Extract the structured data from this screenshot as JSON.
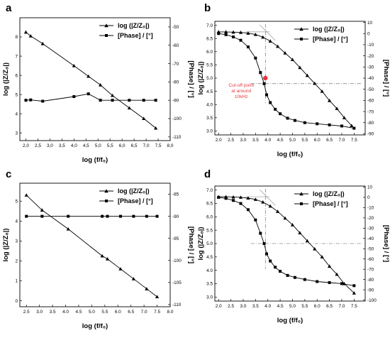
{
  "chart_data": [
    {
      "panel": "a",
      "type": "line",
      "xlabel": "log (f/f₀)",
      "ylabel": "log (|Z/Z₀|)",
      "y2label": "[Phase] / [°]",
      "xlim": [
        1.75,
        8.0
      ],
      "ylim": [
        2.6,
        9.0
      ],
      "y2lim": [
        -112,
        -45
      ],
      "grid": false,
      "legend_position": "top-right",
      "xticks": [
        "2,0",
        "2,5",
        "3,0",
        "3,5",
        "4,0",
        "4,5",
        "5,0",
        "5,5",
        "6,0",
        "6,5",
        "7,0",
        "7,5",
        "8,0"
      ],
      "xtick_values": [
        2.0,
        2.5,
        3.0,
        3.5,
        4.0,
        4.5,
        5.0,
        5.5,
        6.0,
        6.5,
        7.0,
        7.5,
        8.0
      ],
      "yticks": [
        "3",
        "4",
        "5",
        "6",
        "7",
        "8"
      ],
      "ytick_values": [
        3,
        4,
        5,
        6,
        7,
        8
      ],
      "y2ticks": [
        "-50",
        "-60",
        "-70",
        "-80",
        "-90",
        "-100",
        "-110"
      ],
      "y2tick_values": [
        -50,
        -60,
        -70,
        -80,
        -90,
        -100,
        -110
      ],
      "series": [
        {
          "name": "log (|Z/Z₀|)",
          "marker": "triangle",
          "axis": "left",
          "x": [
            2.0,
            2.2,
            2.7,
            4.0,
            4.6,
            5.1,
            5.6,
            6.3,
            6.9,
            7.4
          ],
          "y": [
            8.25,
            8.05,
            7.65,
            6.5,
            5.95,
            5.5,
            4.95,
            4.3,
            3.75,
            3.25
          ]
        },
        {
          "name": "[Phase] / [°]",
          "marker": "square",
          "axis": "right",
          "x": [
            2.0,
            2.2,
            2.7,
            4.0,
            4.6,
            5.1,
            5.6,
            6.3,
            6.9,
            7.4
          ],
          "y": [
            -90,
            -89.8,
            -90.5,
            -88,
            -86.5,
            -90,
            -90,
            -90,
            -90,
            -90
          ]
        }
      ]
    },
    {
      "panel": "b",
      "type": "line",
      "xlabel": "log (f/f₀)",
      "ylabel": "log (|Z/Z₀|)",
      "y2label": "[Phase] / [°]",
      "xlim": [
        1.85,
        7.95
      ],
      "ylim": [
        2.85,
        7.15
      ],
      "y2lim": [
        -91,
        11
      ],
      "grid": false,
      "legend_position": "top-right",
      "xticks": [
        "2.0",
        "2.5",
        "3.0",
        "3.5",
        "4.0",
        "4.5",
        "5.0",
        "5.5",
        "6.0",
        "6.5",
        "7.0",
        "7.5"
      ],
      "xtick_values": [
        2.0,
        2.5,
        3.0,
        3.5,
        4.0,
        4.5,
        5.0,
        5.5,
        6.0,
        6.5,
        7.0,
        7.5
      ],
      "yticks": [
        "3.0",
        "3.5",
        "4.0",
        "4.5",
        "5.0",
        "5.5",
        "6.0",
        "6.5",
        "7.0"
      ],
      "ytick_values": [
        3.0,
        3.5,
        4.0,
        4.5,
        5.0,
        5.5,
        6.0,
        6.5,
        7.0
      ],
      "y2ticks": [
        "10",
        "0",
        "-10",
        "-20",
        "-30",
        "-40",
        "-50",
        "-60",
        "-70",
        "-80",
        "-90"
      ],
      "y2tick_values": [
        10,
        0,
        -10,
        -20,
        -30,
        -40,
        -50,
        -60,
        -70,
        -80,
        -90
      ],
      "series": [
        {
          "name": "log (|Z/Z₀|)",
          "marker": "triangle",
          "axis": "left",
          "x": [
            2.0,
            2.3,
            2.6,
            2.9,
            3.2,
            3.5,
            3.8,
            4.1,
            4.4,
            4.7,
            5.0,
            5.3,
            5.6,
            5.9,
            6.2,
            6.5,
            6.8,
            7.1,
            7.4
          ],
          "y": [
            6.75,
            6.75,
            6.74,
            6.73,
            6.7,
            6.65,
            6.55,
            6.4,
            6.2,
            5.95,
            5.7,
            5.4,
            5.1,
            4.8,
            4.5,
            4.15,
            3.85,
            3.5,
            3.2
          ]
        },
        {
          "name": "[Phase] / [°]",
          "marker": "square",
          "axis": "right",
          "x": [
            2.0,
            2.3,
            2.6,
            2.9,
            3.2,
            3.5,
            3.7,
            3.85,
            3.95,
            4.1,
            4.3,
            4.5,
            4.8,
            5.1,
            5.5,
            6.0,
            6.5,
            7.0,
            7.5
          ],
          "y": [
            0,
            -1,
            -3,
            -6,
            -12,
            -22,
            -35,
            -45,
            -55,
            -62,
            -68,
            -72,
            -76,
            -78,
            -80,
            -81,
            -82,
            -83,
            -85
          ]
        }
      ],
      "annotations": [
        {
          "text_lines": [
            "Cut-off point",
            "at around",
            "10kHz"
          ],
          "x": 3.9,
          "y": 5.0,
          "color": "#e8383d"
        }
      ],
      "reference_lines": {
        "vertical_x": 3.9,
        "horizontal_phase": -45
      }
    },
    {
      "panel": "c",
      "type": "line",
      "xlabel": "log (f/f₀)",
      "ylabel": "log (|Z/Z₀|)",
      "y2label": "[Phase] / [°]",
      "xlim": [
        2.25,
        8.0
      ],
      "ylim": [
        -0.3,
        5.9
      ],
      "y2lim": [
        -110.5,
        -82.5
      ],
      "grid": false,
      "legend_position": "top-right",
      "xticks": [
        "2.5",
        "3.0",
        "3.5",
        "4.0",
        "4.5",
        "5.0",
        "5.5",
        "6.0",
        "6.5",
        "7.0",
        "7.5",
        "8.0"
      ],
      "xtick_values": [
        2.5,
        3.0,
        3.5,
        4.0,
        4.5,
        5.0,
        5.5,
        6.0,
        6.5,
        7.0,
        7.5,
        8.0
      ],
      "yticks": [
        "0",
        "1",
        "2",
        "3",
        "4",
        "5"
      ],
      "ytick_values": [
        0,
        1,
        2,
        3,
        4,
        5
      ],
      "y2ticks": [
        "-110",
        "-105",
        "-100",
        "-95",
        "-90",
        "-85"
      ],
      "y2tick_values": [
        -110,
        -105,
        -100,
        -95,
        -90,
        -85
      ],
      "series": [
        {
          "name": "log (|Z/Z₀|)",
          "marker": "triangle",
          "axis": "left",
          "x": [
            2.5,
            3.1,
            4.1,
            5.4,
            5.6,
            6.1,
            6.6,
            7.1,
            7.5
          ],
          "y": [
            5.3,
            4.55,
            3.6,
            2.25,
            2.1,
            1.6,
            1.1,
            0.6,
            0.2
          ]
        },
        {
          "name": "[Phase] / [°]",
          "marker": "square",
          "axis": "right",
          "x": [
            2.5,
            3.1,
            4.1,
            5.4,
            5.6,
            6.1,
            6.6,
            7.1,
            7.5
          ],
          "y": [
            -90,
            -90,
            -90,
            -90,
            -90,
            -90,
            -90,
            -90,
            -90
          ]
        }
      ]
    },
    {
      "panel": "d",
      "type": "line",
      "xlabel": "log (f/f₀)",
      "ylabel": "log (|Z/Z₀|)",
      "y2label": "[Phase] / [°]",
      "xlim": [
        1.85,
        7.95
      ],
      "ylim": [
        2.85,
        7.15
      ],
      "y2lim": [
        -101,
        11
      ],
      "grid": false,
      "legend_position": "top-right",
      "xticks": [
        "2.0",
        "2.5",
        "3.0",
        "3.5",
        "4.0",
        "4.5",
        "5.0",
        "5.5",
        "6.0",
        "6.5",
        "7.0",
        "7.5"
      ],
      "xtick_values": [
        2.0,
        2.5,
        3.0,
        3.5,
        4.0,
        4.5,
        5.0,
        5.5,
        6.0,
        6.5,
        7.0,
        7.5
      ],
      "yticks": [
        "3.0",
        "3.5",
        "4.0",
        "4.5",
        "5.0",
        "5.5",
        "6.0",
        "6.5",
        "7.0"
      ],
      "ytick_values": [
        3.0,
        3.5,
        4.0,
        4.5,
        5.0,
        5.5,
        6.0,
        6.5,
        7.0
      ],
      "y2ticks": [
        "10",
        "0",
        "-10",
        "-20",
        "-30",
        "-40",
        "-50",
        "-60",
        "-70",
        "-80",
        "-90",
        "-100"
      ],
      "y2tick_values": [
        10,
        0,
        -10,
        -20,
        -30,
        -40,
        -50,
        -60,
        -70,
        -80,
        -90,
        -100
      ],
      "series": [
        {
          "name": "log (|Z/Z₀|)",
          "marker": "triangle",
          "axis": "left",
          "x": [
            2.0,
            2.3,
            2.6,
            2.9,
            3.2,
            3.5,
            3.8,
            4.1,
            4.4,
            4.7,
            5.0,
            5.3,
            5.6,
            5.9,
            6.2,
            6.5,
            6.8,
            7.1,
            7.5
          ],
          "y": [
            6.75,
            6.75,
            6.74,
            6.73,
            6.7,
            6.65,
            6.55,
            6.4,
            6.2,
            5.95,
            5.7,
            5.4,
            5.1,
            4.8,
            4.5,
            4.15,
            3.85,
            3.5,
            3.15
          ]
        },
        {
          "name": "[Phase] / [°]",
          "marker": "square",
          "axis": "right",
          "x": [
            2.0,
            2.3,
            2.6,
            2.9,
            3.2,
            3.5,
            3.7,
            3.85,
            3.95,
            4.1,
            4.3,
            4.5,
            4.8,
            5.1,
            5.5,
            6.0,
            6.5,
            7.0,
            7.5
          ],
          "y": [
            0,
            -1,
            -3,
            -6,
            -12,
            -22,
            -35,
            -45,
            -55,
            -62,
            -68,
            -72,
            -76,
            -78,
            -80,
            -82,
            -83,
            -84,
            -86
          ]
        }
      ],
      "reference_lines": {
        "vertical_x": 3.9,
        "horizontal_phase": -45
      }
    }
  ]
}
